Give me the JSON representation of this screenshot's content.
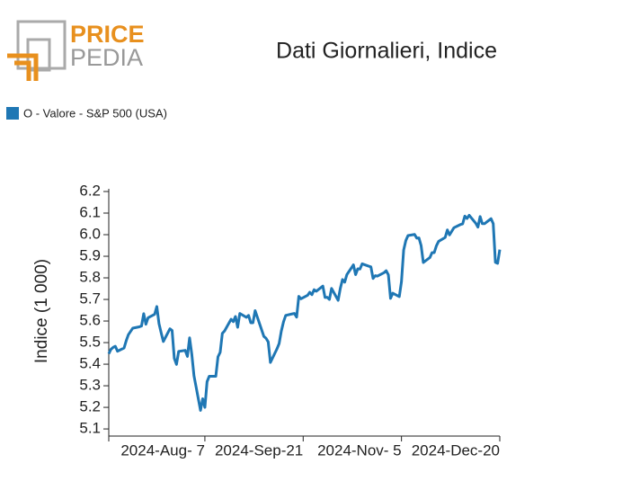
{
  "brand": {
    "line1": "PRICE",
    "line2": "PEDIA"
  },
  "chart_data": {
    "type": "line",
    "title": "Dati Giornalieri, Indice",
    "y_label": "Indice (1 000)",
    "legend_position": "top-left",
    "series": [
      {
        "name": "O - Valore - S&P 500 (USA)",
        "color": "#1f77b4",
        "values": [
          5.448,
          5.469,
          5.478,
          5.483,
          5.46,
          5.475,
          5.509,
          5.537,
          5.567,
          5.573,
          5.577,
          5.634,
          5.585,
          5.615,
          5.631,
          5.667,
          5.588,
          5.545,
          5.505,
          5.564,
          5.556,
          5.427,
          5.399,
          5.459,
          5.464,
          5.436,
          5.522,
          5.447,
          5.347,
          5.186,
          5.24,
          5.2,
          5.319,
          5.344,
          5.344,
          5.434,
          5.455,
          5.543,
          5.554,
          5.608,
          5.597,
          5.621,
          5.571,
          5.635,
          5.617,
          5.626,
          5.592,
          5.592,
          5.648,
          5.529,
          5.52,
          5.503,
          5.408,
          5.471,
          5.496,
          5.554,
          5.596,
          5.626,
          5.633,
          5.635,
          5.618,
          5.714,
          5.703,
          5.719,
          5.733,
          5.722,
          5.745,
          5.738,
          5.762,
          5.709,
          5.71,
          5.7,
          5.751,
          5.696,
          5.751,
          5.792,
          5.78,
          5.815,
          5.86,
          5.815,
          5.842,
          5.841,
          5.865,
          5.854,
          5.851,
          5.797,
          5.81,
          5.808,
          5.824,
          5.833,
          5.814,
          5.705,
          5.729,
          5.713,
          5.783,
          5.929,
          5.973,
          5.996,
          6.001,
          5.984,
          5.985,
          5.949,
          5.871,
          5.894,
          5.917,
          5.917,
          5.949,
          5.969,
          5.987,
          6.022,
          5.999,
          6.032,
          6.047,
          6.05,
          6.086,
          6.075,
          6.09,
          6.053,
          6.035,
          6.084,
          6.051,
          6.051,
          6.074,
          6.051,
          5.872,
          5.867,
          5.931
        ]
      }
    ],
    "x": [
      "2024-06-24",
      "2024-06-25",
      "2024-06-26",
      "2024-06-27",
      "2024-06-28",
      "2024-07-01",
      "2024-07-02",
      "2024-07-03",
      "2024-07-05",
      "2024-07-08",
      "2024-07-09",
      "2024-07-10",
      "2024-07-11",
      "2024-07-12",
      "2024-07-15",
      "2024-07-16",
      "2024-07-17",
      "2024-07-18",
      "2024-07-19",
      "2024-07-22",
      "2024-07-23",
      "2024-07-24",
      "2024-07-25",
      "2024-07-26",
      "2024-07-29",
      "2024-07-30",
      "2024-07-31",
      "2024-08-01",
      "2024-08-02",
      "2024-08-05",
      "2024-08-06",
      "2024-08-07",
      "2024-08-08",
      "2024-08-09",
      "2024-08-12",
      "2024-08-13",
      "2024-08-14",
      "2024-08-15",
      "2024-08-16",
      "2024-08-19",
      "2024-08-20",
      "2024-08-21",
      "2024-08-22",
      "2024-08-23",
      "2024-08-26",
      "2024-08-27",
      "2024-08-28",
      "2024-08-29",
      "2024-08-30",
      "2024-09-03",
      "2024-09-04",
      "2024-09-05",
      "2024-09-06",
      "2024-09-09",
      "2024-09-10",
      "2024-09-11",
      "2024-09-12",
      "2024-09-13",
      "2024-09-16",
      "2024-09-17",
      "2024-09-18",
      "2024-09-19",
      "2024-09-20",
      "2024-09-23",
      "2024-09-24",
      "2024-09-25",
      "2024-09-26",
      "2024-09-27",
      "2024-09-30",
      "2024-10-01",
      "2024-10-02",
      "2024-10-03",
      "2024-10-04",
      "2024-10-07",
      "2024-10-08",
      "2024-10-09",
      "2024-10-10",
      "2024-10-11",
      "2024-10-14",
      "2024-10-15",
      "2024-10-16",
      "2024-10-17",
      "2024-10-18",
      "2024-10-21",
      "2024-10-22",
      "2024-10-23",
      "2024-10-24",
      "2024-10-25",
      "2024-10-28",
      "2024-10-29",
      "2024-10-30",
      "2024-10-31",
      "2024-11-01",
      "2024-11-04",
      "2024-11-05",
      "2024-11-06",
      "2024-11-07",
      "2024-11-08",
      "2024-11-11",
      "2024-11-12",
      "2024-11-13",
      "2024-11-14",
      "2024-11-15",
      "2024-11-18",
      "2024-11-19",
      "2024-11-20",
      "2024-11-21",
      "2024-11-22",
      "2024-11-25",
      "2024-11-26",
      "2024-11-27",
      "2024-11-29",
      "2024-12-02",
      "2024-12-03",
      "2024-12-04",
      "2024-12-05",
      "2024-12-06",
      "2024-12-09",
      "2024-12-10",
      "2024-12-11",
      "2024-12-12",
      "2024-12-13",
      "2024-12-16",
      "2024-12-17",
      "2024-12-18",
      "2024-12-19",
      "2024-12-20"
    ],
    "xlim": [
      "2024-06-24",
      "2024-12-20"
    ],
    "xticks": [
      {
        "value": "2024-08-07",
        "label": "2024-Aug- 7"
      },
      {
        "value": "2024-09-21",
        "label": "2024-Sep-21"
      },
      {
        "value": "2024-11-05",
        "label": "2024-Nov- 5"
      },
      {
        "value": "2024-12-20",
        "label": "2024-Dec-20"
      }
    ],
    "ylim": [
      5.067,
      6.2125
    ],
    "yticks": [
      5.1,
      5.2,
      5.3,
      5.4,
      5.5,
      5.6,
      5.7,
      5.8,
      5.9,
      {
        "value": 6,
        "label": "6.0"
      },
      6.1,
      6.2
    ],
    "grid": false
  }
}
